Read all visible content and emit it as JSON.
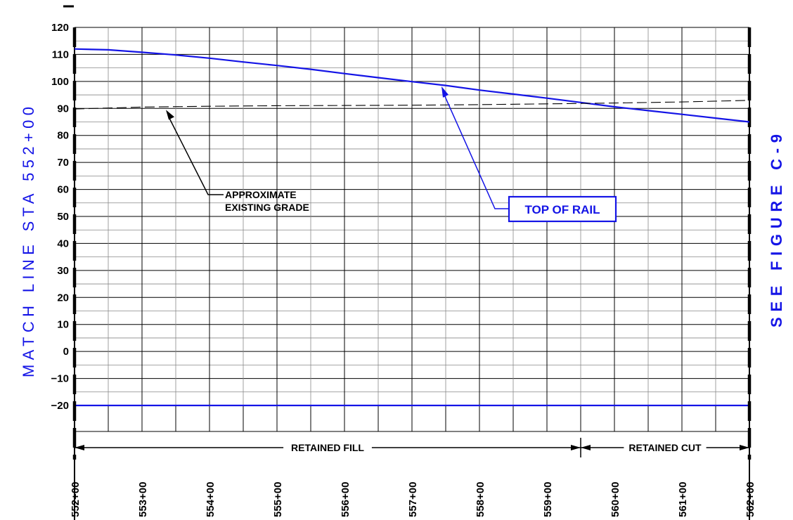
{
  "chart_data": {
    "type": "line",
    "xlim": [
      "552+00",
      "562+00"
    ],
    "ylim": [
      -20,
      120
    ],
    "y_ticks": [
      120,
      110,
      100,
      90,
      80,
      70,
      60,
      50,
      40,
      30,
      20,
      10,
      0,
      -10,
      -20
    ],
    "y_tick_labels": [
      "120",
      "110",
      "100",
      "90",
      "80",
      "70",
      "60",
      "50",
      "40",
      "30",
      "20",
      "10",
      "0",
      "−10",
      "−20"
    ],
    "x_ticks": [
      "552+00",
      "553+00",
      "554+00",
      "555+00",
      "556+00",
      "557+00",
      "558+00",
      "559+00",
      "560+00",
      "561+00",
      "562+00"
    ],
    "grid": true,
    "series": [
      {
        "name": "TOP OF RAIL",
        "color": "#1414e6",
        "style": "solid",
        "x": [
          "552+00",
          "552+50",
          "553+00",
          "553+50",
          "554+00",
          "554+50",
          "555+00",
          "555+50",
          "556+00",
          "556+50",
          "557+00",
          "557+50",
          "558+00",
          "558+50",
          "559+00",
          "559+50",
          "560+00",
          "560+50",
          "561+00",
          "561+50",
          "562+00"
        ],
        "y": [
          112.0,
          111.7,
          110.8,
          109.8,
          108.6,
          107.2,
          105.9,
          104.5,
          102.9,
          101.4,
          99.9,
          98.5,
          96.8,
          95.3,
          93.8,
          92.2,
          90.6,
          89.2,
          87.8,
          86.4,
          85.0
        ]
      },
      {
        "name": "APPROXIMATE EXISTING GRADE",
        "color": "#000000",
        "style": "dashed",
        "x": [
          "552+00",
          "553+00",
          "554+00",
          "555+00",
          "556+00",
          "557+00",
          "558+00",
          "559+00",
          "560+00",
          "561+00",
          "562+00"
        ],
        "y": [
          89.8,
          90.5,
          90.8,
          91.0,
          91.1,
          91.2,
          91.4,
          91.7,
          92.0,
          92.4,
          93.0
        ]
      }
    ],
    "annotations": [
      {
        "text_lines": [
          "APPROXIMATE",
          "EXISTING GRADE"
        ]
      },
      {
        "text": "TOP OF RAIL"
      }
    ],
    "zones": [
      {
        "label": "RETAINED FILL",
        "from": "552+00",
        "to": "559+50"
      },
      {
        "label": "RETAINED CUT",
        "from": "559+50",
        "to": "562+00"
      }
    ]
  },
  "side_labels": {
    "left": "MATCH LINE STA 552+00",
    "right": "SEE FIGURE C-9"
  }
}
